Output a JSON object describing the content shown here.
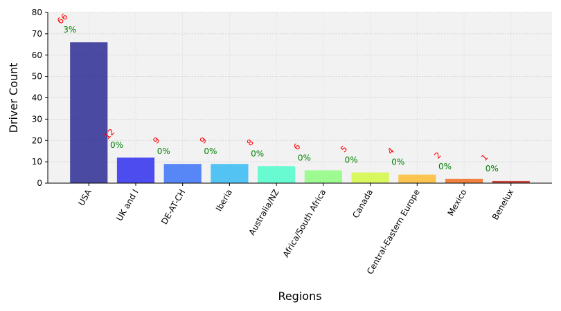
{
  "chart_data": {
    "type": "bar",
    "title": "",
    "xlabel": "Regions",
    "ylabel": "Driver Count",
    "ylim": [
      0,
      80
    ],
    "yticks": [
      0,
      10,
      20,
      30,
      40,
      50,
      60,
      70,
      80
    ],
    "grid": true,
    "categories": [
      "USA",
      "UK and I",
      "DE-AT-CH",
      "Iberia",
      "Australia/NZ",
      "Africa/South Africa",
      "Canada",
      "Central-Eastern Europe",
      "Mexico",
      "Benelux"
    ],
    "values": [
      66,
      12,
      9,
      9,
      8,
      6,
      5,
      4,
      2,
      1
    ],
    "value_labels": [
      "66",
      "12",
      "9",
      "9",
      "8",
      "6",
      "5",
      "4",
      "2",
      "1"
    ],
    "percent_labels": [
      "3%",
      "0%",
      "0%",
      "0%",
      "0%",
      "0%",
      "0%",
      "0%",
      "0%",
      "0%"
    ],
    "bar_colors": [
      "#1f1f8f",
      "#2323ee",
      "#2f6af8",
      "#2bb7f4",
      "#45fcc8",
      "#88fc79",
      "#d2f838",
      "#fdb927",
      "#f06414",
      "#c01a0a"
    ],
    "plot_background": "#f2f2f2",
    "value_label_color": "#ff0000",
    "percent_label_color": "#008000"
  }
}
